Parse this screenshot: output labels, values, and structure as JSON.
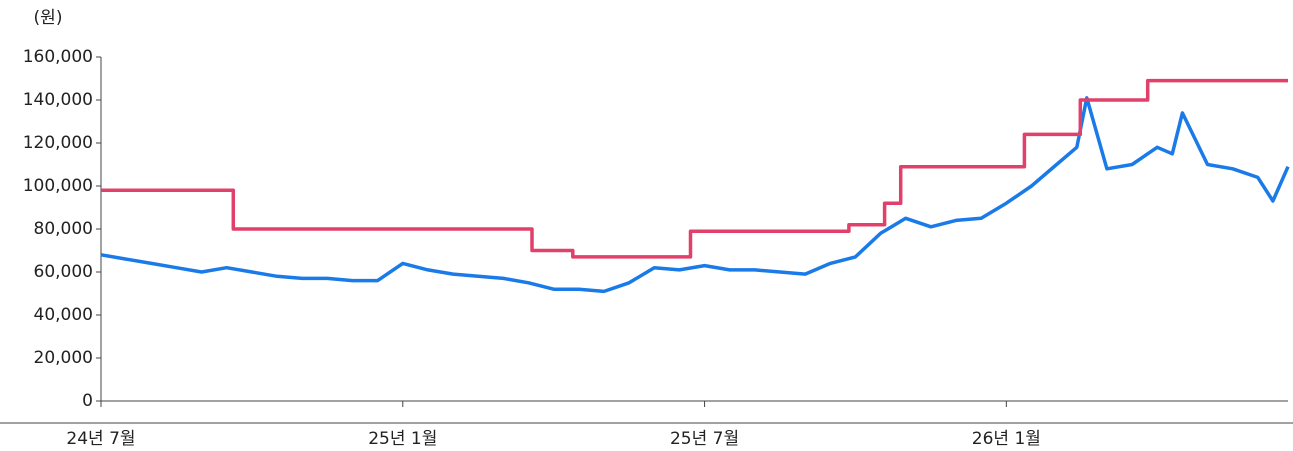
{
  "chart_data": {
    "type": "line",
    "y_label": "(원)",
    "xlim": [
      0,
      23.6
    ],
    "xticks": [
      {
        "value": 0,
        "label": "24년 7월"
      },
      {
        "value": 6,
        "label": "25년 1월"
      },
      {
        "value": 12,
        "label": "25년 7월"
      },
      {
        "value": 18,
        "label": "26년 1월"
      }
    ],
    "ylim": [
      0,
      160000
    ],
    "yticks": [
      0,
      {
        "value": 20000,
        "label": "20,000"
      },
      {
        "value": 40000,
        "label": "40,000"
      },
      {
        "value": 60000,
        "label": "60,000"
      },
      {
        "value": 80000,
        "label": "80,000"
      },
      {
        "value": 100000,
        "label": "100,000"
      },
      {
        "value": 120000,
        "label": "120,000"
      },
      {
        "value": 140000,
        "label": "140,000"
      },
      {
        "value": 160000,
        "label": "160,000"
      }
    ],
    "series": [
      {
        "color": "#1a7be8",
        "x": [
          0,
          0.5,
          1,
          1.5,
          2,
          2.5,
          3,
          3.5,
          4,
          4.5,
          5,
          5.5,
          6,
          6.5,
          7,
          7.5,
          8,
          8.5,
          9,
          9.5,
          10,
          10.5,
          11,
          11.5,
          12,
          12.5,
          13,
          13.5,
          14,
          14.5,
          15,
          15.5,
          16,
          16.5,
          17,
          17.5,
          18,
          18.5,
          19,
          19.4,
          19.6,
          20,
          20.5,
          21,
          21.3,
          21.5,
          22,
          22.5,
          23,
          23.3,
          23.6
        ],
        "values": [
          68000,
          66000,
          64000,
          62000,
          60000,
          62000,
          60000,
          58000,
          57000,
          57000,
          56000,
          56000,
          64000,
          61000,
          59000,
          58000,
          57000,
          55000,
          52000,
          52000,
          51000,
          55000,
          62000,
          61000,
          63000,
          61000,
          61000,
          60000,
          59000,
          64000,
          67000,
          78000,
          85000,
          81000,
          84000,
          85000,
          92000,
          100000,
          110000,
          118000,
          141000,
          108000,
          110000,
          118000,
          115000,
          134000,
          110000,
          108000,
          104000,
          93000,
          109000
        ]
      },
      {
        "color": "#e0406a",
        "x": [
          0,
          2.63,
          2.63,
          8.57,
          8.57,
          9.38,
          9.38,
          11.72,
          11.72,
          14.87,
          14.87,
          15.58,
          15.58,
          15.9,
          15.9,
          18.36,
          18.36,
          19.47,
          19.47,
          20.81,
          20.81,
          23.6
        ],
        "values": [
          98000,
          98000,
          80000,
          80000,
          70000,
          70000,
          67000,
          67000,
          79000,
          79000,
          82000,
          82000,
          92000,
          92000,
          109000,
          109000,
          124000,
          124000,
          140000,
          140000,
          149000,
          149000
        ]
      }
    ]
  }
}
